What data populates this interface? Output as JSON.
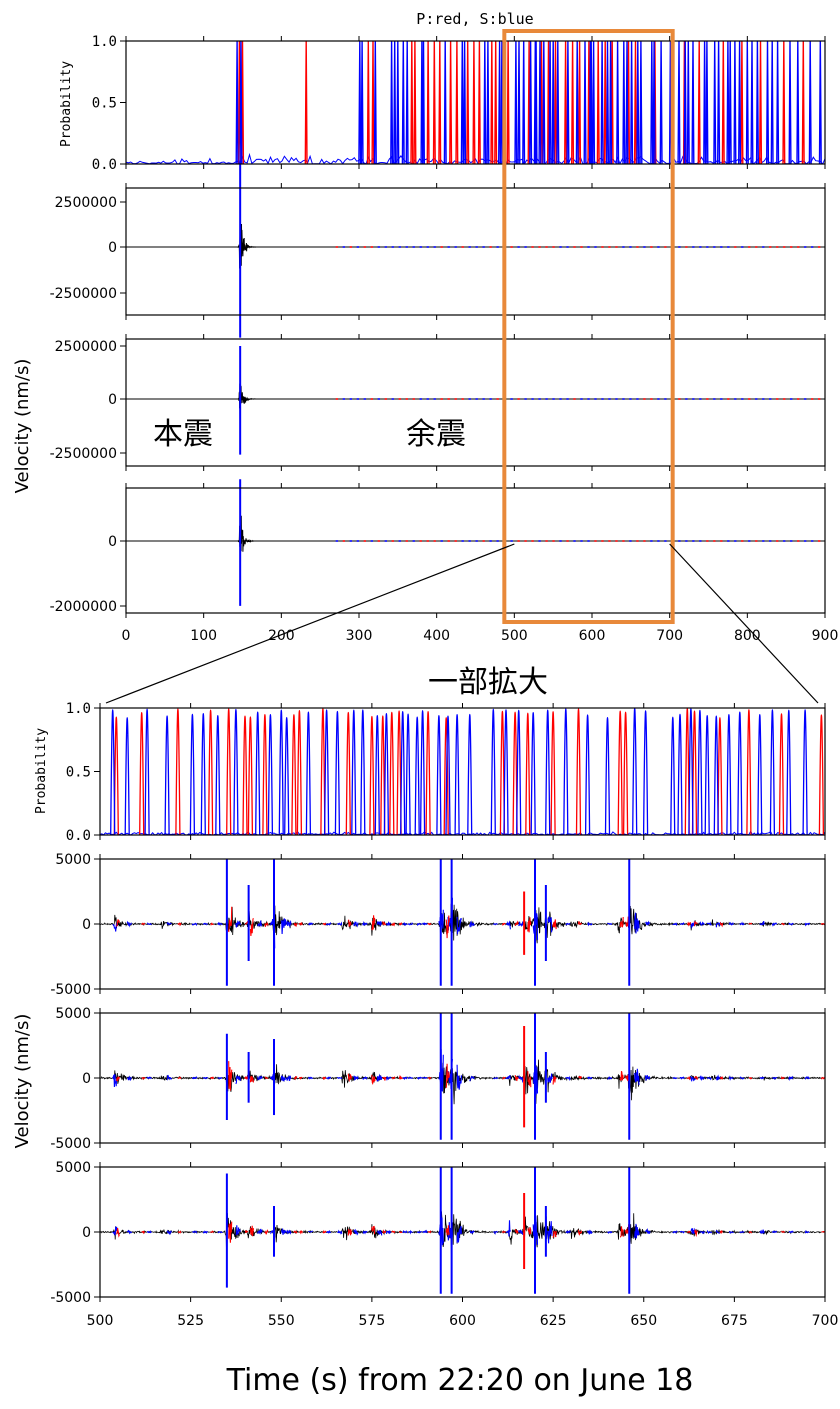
{
  "title": "P:red, S:blue",
  "overview_x_ticks": [
    "0",
    "100",
    "200",
    "300",
    "400",
    "500",
    "600",
    "700",
    "800",
    "900"
  ],
  "zoom_x_ticks": [
    "500",
    "525",
    "550",
    "575",
    "600",
    "625",
    "650",
    "675",
    "700"
  ],
  "overview_prob_ticks": [
    "1.0",
    "0.5",
    "0.0"
  ],
  "overview_prob_label": "Probability",
  "overview_wave_ticks": [
    [
      "2500000",
      "0",
      "-2500000"
    ],
    [
      "2500000",
      "0",
      "-2500000"
    ],
    [
      "0",
      "-2000000"
    ]
  ],
  "zoom_prob_ticks": [
    "1.0",
    "0.5",
    "0.0"
  ],
  "zoom_prob_label": "Probability",
  "zoom_wave_ticks": [
    "5000",
    "0",
    "-5000"
  ],
  "velocity_label": "Velocity (nm/s)",
  "annotation_mainshock": "本震",
  "annotation_aftershocks": "余震",
  "annotation_zoom": "一部拡大",
  "time_label": "Time (s) from 22:20 on June 18",
  "colors": {
    "p": "#ff0000",
    "s": "#0000ff",
    "wave": "#000000",
    "highlight": "#e8893a"
  },
  "chart_data": [
    {
      "type": "line",
      "panel": "overview",
      "xlim": [
        0,
        900
      ],
      "highlight_window": [
        500,
        700
      ],
      "probability_ylim": [
        0,
        1
      ],
      "mainshock_time": 148,
      "component_ylims": [
        [
          -3000000,
          3000000
        ],
        [
          -3000000,
          3000000
        ],
        [
          -2100000,
          2100000
        ]
      ],
      "mainshock_peak_velocity": [
        2600000,
        2500000,
        1900000
      ],
      "p_pick_times": [
        146,
        150,
        232,
        312,
        318,
        368,
        372,
        389,
        397,
        404,
        418,
        426,
        440,
        448,
        455,
        471,
        476,
        492,
        519,
        535,
        544,
        553,
        566,
        575,
        584,
        596,
        608,
        617,
        626,
        647,
        656,
        681,
        704,
        719,
        738,
        769,
        793,
        817,
        847,
        872
      ],
      "s_pick_times": [
        143,
        148,
        301,
        304,
        321,
        342,
        346,
        350,
        357,
        362,
        381,
        383,
        411,
        433,
        436,
        462,
        466,
        481,
        484,
        502,
        506,
        512,
        521,
        527,
        528,
        533,
        538,
        546,
        550,
        556,
        569,
        581,
        591,
        598,
        599,
        602,
        613,
        620,
        624,
        633,
        641,
        645,
        651,
        659,
        663,
        677,
        680,
        689,
        701,
        712,
        720,
        724,
        730,
        745,
        748,
        758,
        763,
        775,
        778,
        784,
        790,
        800,
        806,
        813,
        826,
        832,
        839,
        855,
        865,
        881,
        894
      ]
    },
    {
      "type": "line",
      "panel": "zoom",
      "xlim": [
        500,
        700
      ],
      "probability_ylim": [
        0,
        1
      ],
      "velocity_ylim": [
        -5000,
        5000
      ],
      "p_pick_times": [
        504.5,
        511.5,
        521.5,
        530.5,
        535.5,
        540,
        541.5,
        545.5,
        553.5,
        555,
        561.5,
        568.5,
        575,
        578,
        580.5,
        582.5,
        590.5,
        595.5,
        611,
        614.5,
        618,
        625,
        632,
        643.5,
        645,
        662,
        664,
        671,
        679,
        688,
        699
      ],
      "s_pick_times": [
        503.5,
        507.5,
        513,
        518.5,
        525.5,
        528.5,
        532.5,
        537.5,
        543.5,
        547,
        550,
        551.5,
        557.5,
        562.5,
        565.5,
        570,
        572.5,
        576.5,
        579,
        583.5,
        585,
        587.5,
        589,
        593.5,
        596,
        598.5,
        602,
        608.5,
        612,
        615.5,
        619.5,
        623.5,
        628.5,
        634.5,
        640,
        647.5,
        650.5,
        658,
        660,
        663,
        665.5,
        667.5,
        670,
        673.5,
        676.5,
        682,
        685.5,
        690,
        694.5
      ],
      "events": [
        {
          "time": 504,
          "amplitude": [
            1400,
            1500,
            1000
          ]
        },
        {
          "time": 517,
          "amplitude": [
            700,
            700,
            600
          ]
        },
        {
          "time": 535,
          "amplitude": [
            5000,
            3400,
            4500
          ]
        },
        {
          "time": 541,
          "amplitude": [
            3000,
            2000,
            1500
          ]
        },
        {
          "time": 548,
          "amplitude": [
            5000,
            3000,
            2000
          ]
        },
        {
          "time": 567,
          "amplitude": [
            1800,
            1800,
            1800
          ]
        },
        {
          "time": 575,
          "amplitude": [
            1700,
            1200,
            1200
          ]
        },
        {
          "time": 594,
          "amplitude": [
            5000,
            5000,
            5000
          ]
        },
        {
          "time": 597,
          "amplitude": [
            5000,
            5000,
            5000
          ]
        },
        {
          "time": 613,
          "amplitude": [
            800,
            800,
            1800
          ]
        },
        {
          "time": 617,
          "amplitude": [
            2500,
            4000,
            3000
          ]
        },
        {
          "time": 620,
          "amplitude": [
            5000,
            5000,
            5000
          ]
        },
        {
          "time": 623,
          "amplitude": [
            3000,
            2000,
            2000
          ]
        },
        {
          "time": 630,
          "amplitude": [
            800,
            800,
            1500
          ]
        },
        {
          "time": 643,
          "amplitude": [
            1500,
            1500,
            1500
          ]
        },
        {
          "time": 646,
          "amplitude": [
            5000,
            5000,
            5000
          ]
        },
        {
          "time": 663,
          "amplitude": [
            700,
            500,
            600
          ]
        },
        {
          "time": 669,
          "amplitude": [
            500,
            400,
            400
          ]
        },
        {
          "time": 683,
          "amplitude": [
            400,
            300,
            300
          ]
        }
      ]
    }
  ]
}
